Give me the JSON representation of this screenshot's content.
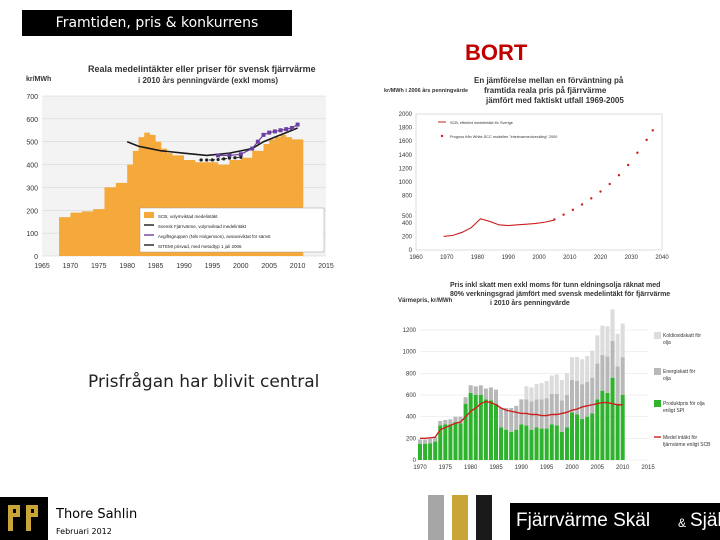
{
  "slide": {
    "title": "Framtiden, pris & konkurrens",
    "bort": "BORT",
    "central_text": "Prisfrågan har blivit central",
    "author": "Thore Sahlin",
    "date": "Februari 2012",
    "footer_main": "Fjärrvärme Skäl",
    "footer_amp": "&",
    "footer_end": "Själ"
  },
  "chart_data": [
    {
      "type": "area",
      "title": "Reala medelintäkter eller priser för svensk fjärrvärme",
      "subtitle": "i 2010 års penningvärde (exkl moms)",
      "ylabel": "kr/MWh",
      "xlim": [
        1965,
        2015
      ],
      "ylim": [
        0,
        700
      ],
      "xticks": [
        "1965",
        "1970",
        "1975",
        "1980",
        "1985",
        "1990",
        "1995",
        "2000",
        "2005",
        "2010",
        "2015"
      ],
      "yticks": [
        "0",
        "100",
        "200",
        "300",
        "400",
        "500",
        "600",
        "700"
      ],
      "legend": [
        "SCB, volymviktad medelintäkt",
        "Svensk Fjärrvärme, volymviktad medelintäkt",
        "Avgiftsgruppen (Nils Holgersson), avsavsviktat för sämst",
        "SITEMI prisvad, med metodtyp 1 juli 2006"
      ],
      "series": [
        {
          "name": "SCB, volymviktad medelintäkt",
          "x": [
            1968,
            1970,
            1972,
            1974,
            1976,
            1978,
            1980,
            1981,
            1982,
            1983,
            1984,
            1985,
            1986,
            1987,
            1988,
            1990,
            1992,
            1994,
            1996,
            1998,
            2000,
            2002,
            2004,
            2005,
            2006,
            2007,
            2008,
            2009,
            2010
          ],
          "y": [
            170,
            190,
            195,
            205,
            300,
            320,
            400,
            460,
            520,
            540,
            530,
            500,
            470,
            450,
            440,
            420,
            410,
            410,
            400,
            420,
            430,
            460,
            490,
            510,
            520,
            530,
            520,
            510,
            510
          ]
        },
        {
          "name": "Svensk Fjärrvärme, volymviktad medelintäkt",
          "x": [
            1980,
            1982,
            1984,
            1986,
            1988,
            1990,
            1992,
            1994,
            1996,
            1998,
            2000,
            2002,
            2004,
            2006,
            2008,
            2010
          ],
          "y": [
            500,
            480,
            470,
            460,
            455,
            450,
            445,
            440,
            445,
            450,
            460,
            470,
            500,
            520,
            540,
            560
          ]
        },
        {
          "name": "Avgiftsgruppen (Nils Holgersson), avsavsviktat för sämst",
          "x": [
            1996,
            1998,
            2000,
            2002,
            2003,
            2004,
            2005,
            2006,
            2007,
            2008,
            2009,
            2010
          ],
          "y": [
            440,
            440,
            445,
            470,
            500,
            530,
            540,
            545,
            550,
            555,
            560,
            575
          ]
        },
        {
          "name": "SITEMI prisvad, med metodtyp 1 juli 2006",
          "x": [
            1993,
            1994,
            1995,
            1996,
            1997,
            1998,
            1999,
            2000
          ],
          "y": [
            420,
            420,
            420,
            422,
            425,
            428,
            430,
            432
          ]
        }
      ]
    },
    {
      "type": "line",
      "title": "En jämförelse mellan en förväntning på framtida reala pris på fjärrvärme jämfört med faktiskt utfall 1969-2005",
      "ylabel": "kr/MWh i 2006 års penningvärde",
      "xlim": [
        1960,
        2040
      ],
      "ylim": [
        0,
        2000
      ],
      "xticks": [
        "1960",
        "1970",
        "1980",
        "1990",
        "2000",
        "2010",
        "2020",
        "2030",
        "2040"
      ],
      "yticks": [
        "0",
        "200",
        "400",
        "500",
        "800",
        "1000",
        "1200",
        "1400",
        "1600",
        "1800",
        "2000"
      ],
      "legend": [
        "SCB, effektivt medelintäkt för Sverige",
        "Prognos från White-SCC modellen \"intertvarmeutveckling\" 2000"
      ],
      "series": [
        {
          "name": "SCB, effektivt medelintäkt för Sverige",
          "x": [
            1969,
            1972,
            1975,
            1978,
            1981,
            1984,
            1987,
            1990,
            1993,
            1996,
            1999,
            2002,
            2005
          ],
          "y": [
            200,
            215,
            260,
            330,
            460,
            420,
            370,
            360,
            370,
            380,
            390,
            410,
            440
          ]
        },
        {
          "name": "Prognos från White-SCC modellen \"intertvarmeutveckling\" 2000",
          "x": [
            2005,
            2008,
            2011,
            2014,
            2017,
            2020,
            2023,
            2026,
            2029,
            2032,
            2035,
            2037
          ],
          "y": [
            450,
            520,
            590,
            670,
            760,
            860,
            970,
            1100,
            1250,
            1430,
            1620,
            1760
          ]
        }
      ]
    },
    {
      "type": "bar",
      "title": "Pris inkl skatt men exkl moms för tunn eldningsolja räknat med 80% verkningsgrad jämfört med svensk medelintäkt för fjärrvärme i 2010 års penningvärde",
      "ylabel": "Värmepris, kr/MWh",
      "xlim": [
        1970,
        2015
      ],
      "ylim": [
        0,
        1200
      ],
      "xticks": [
        "1970",
        "1975",
        "1980",
        "1985",
        "1990",
        "1995",
        "2000",
        "2005",
        "2010",
        "2015"
      ],
      "yticks": [
        "0",
        "200",
        "400",
        "600",
        "800",
        "1000",
        "1200"
      ],
      "legend": [
        "Koldioxidskatt för olja",
        "Energiskatt för olja",
        "Produktpris för olja enligt SPI",
        "Medel intäkt för fjärrvärme enligt SCB"
      ],
      "categories": [
        1970,
        1971,
        1972,
        1973,
        1974,
        1975,
        1976,
        1977,
        1978,
        1979,
        1980,
        1981,
        1982,
        1983,
        1984,
        1985,
        1986,
        1987,
        1988,
        1989,
        1990,
        1991,
        1992,
        1993,
        1994,
        1995,
        1996,
        1997,
        1998,
        1999,
        2000,
        2001,
        2002,
        2003,
        2004,
        2005,
        2006,
        2007,
        2008,
        2009,
        2010
      ],
      "series": [
        {
          "name": "Produktpris för olja enligt SPI",
          "values": [
            150,
            150,
            155,
            170,
            320,
            330,
            330,
            350,
            340,
            520,
            620,
            600,
            600,
            560,
            550,
            520,
            300,
            280,
            260,
            280,
            330,
            320,
            280,
            300,
            290,
            290,
            330,
            320,
            260,
            300,
            440,
            420,
            380,
            400,
            430,
            560,
            640,
            620,
            760,
            520,
            600
          ]
        },
        {
          "name": "Energiskatt för olja",
          "values": [
            40,
            40,
            40,
            40,
            40,
            40,
            45,
            50,
            60,
            60,
            70,
            80,
            90,
            100,
            120,
            130,
            180,
            200,
            220,
            220,
            230,
            240,
            260,
            260,
            270,
            280,
            280,
            290,
            290,
            300,
            300,
            310,
            320,
            320,
            330,
            330,
            330,
            335,
            340,
            345,
            350
          ]
        },
        {
          "name": "Koldioxidskatt för olja",
          "values": [
            0,
            0,
            0,
            0,
            0,
            0,
            0,
            0,
            0,
            0,
            0,
            0,
            0,
            0,
            0,
            0,
            0,
            0,
            0,
            0,
            0,
            120,
            130,
            140,
            150,
            160,
            170,
            180,
            190,
            200,
            210,
            220,
            230,
            240,
            250,
            260,
            270,
            280,
            290,
            300,
            310
          ]
        },
        {
          "name": "Medel intäkt för fjärrvärme enligt SCB",
          "values": [
            200,
            200,
            205,
            210,
            280,
            300,
            320,
            340,
            350,
            400,
            450,
            480,
            520,
            540,
            530,
            510,
            480,
            460,
            450,
            440,
            430,
            430,
            420,
            420,
            410,
            410,
            420,
            420,
            430,
            440,
            460,
            470,
            490,
            500,
            510,
            520,
            530,
            530,
            520,
            510,
            510
          ]
        }
      ]
    }
  ],
  "colors": {
    "area_orange": "#f6a93b",
    "scb_dark_line": "#1a1a1a",
    "avgift_purple": "#6a3fa0",
    "red_line": "#cc1f1f",
    "bar_green": "#2fb32f",
    "bar_grey": "#b8b8b8",
    "bar_lightgrey": "#dcdcdc",
    "logo_gold": "#c9a437"
  }
}
